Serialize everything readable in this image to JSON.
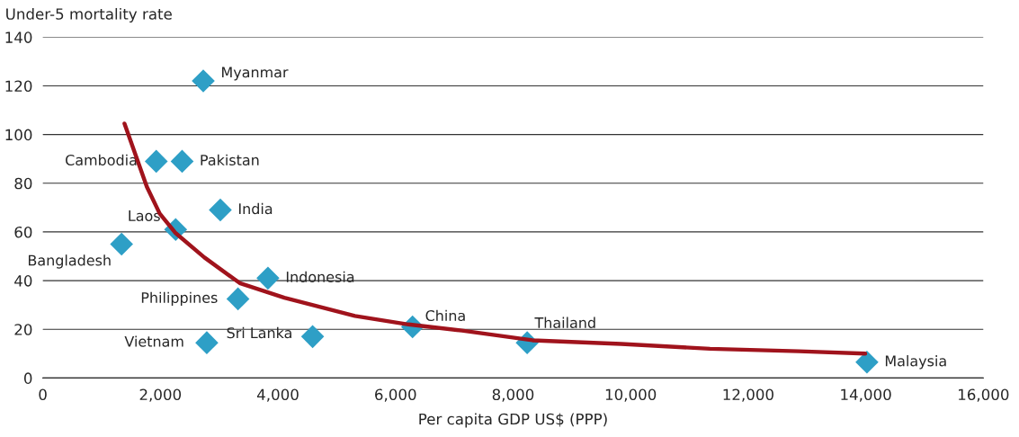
{
  "chart_data": {
    "type": "scatter",
    "ylabel": "Under-5 mortality rate",
    "xlabel": "Per capita GDP US$ (PPP)",
    "xlim": [
      0,
      16000
    ],
    "xticks": [
      0,
      {
        "value": 2000,
        "label": "2,000"
      },
      {
        "value": 4000,
        "label": "4,000"
      },
      {
        "value": 6000,
        "label": "6,000"
      },
      {
        "value": 8000,
        "label": "8,000"
      },
      {
        "value": 10000,
        "label": "10,000"
      },
      {
        "value": 12000,
        "label": "12,000"
      },
      {
        "value": 14000,
        "label": "14,000"
      },
      {
        "value": 16000,
        "label": "16,000"
      }
    ],
    "ylim": [
      0,
      140
    ],
    "yticks": [
      0,
      20,
      40,
      60,
      80,
      100,
      120,
      140
    ],
    "grid": "y",
    "marker": "diamond",
    "series": [
      {
        "color": "#2e9fc6",
        "x": [
          2730,
          1930,
          2370,
          3020,
          2260,
          1340,
          3830,
          3320,
          2790,
          4590,
          6290,
          8240,
          14020
        ],
        "values": [
          122,
          89,
          89,
          69,
          61,
          55,
          41,
          32.5,
          14.5,
          17,
          21,
          14.5,
          6.5
        ]
      },
      {
        "type": "line",
        "color": "#a0131c",
        "marker": "none",
        "x": [
          1390,
          1770,
          1990,
          2260,
          2750,
          3350,
          4110,
          5310,
          6220,
          7130,
          8330,
          9840,
          11350,
          12860,
          13990
        ],
        "values": [
          104.5,
          78.5,
          67.5,
          59.5,
          49.5,
          39,
          33,
          25.5,
          22,
          19.5,
          15.5,
          14,
          12,
          11,
          10
        ]
      }
    ],
    "annotations": [
      {
        "text": "Myanmar",
        "x": 2730,
        "y": 122
      },
      {
        "text": "Cambodia",
        "x": 1930,
        "y": 89
      },
      {
        "text": "Pakistan",
        "x": 2370,
        "y": 89
      },
      {
        "text": "India",
        "x": 3020,
        "y": 69
      },
      {
        "text": "Laos",
        "x": 2260,
        "y": 61
      },
      {
        "text": "Bangladesh",
        "x": 1340,
        "y": 55
      },
      {
        "text": "Indonesia",
        "x": 3830,
        "y": 41
      },
      {
        "text": "Philippines",
        "x": 3320,
        "y": 32.5
      },
      {
        "text": "Vietnam",
        "x": 2790,
        "y": 14.5
      },
      {
        "text": "Sri Lanka",
        "x": 4590,
        "y": 17
      },
      {
        "text": "China",
        "x": 6290,
        "y": 21
      },
      {
        "text": "Thailand",
        "x": 8240,
        "y": 14.5
      },
      {
        "text": "Malaysia",
        "x": 14020,
        "y": 6.5
      }
    ]
  }
}
